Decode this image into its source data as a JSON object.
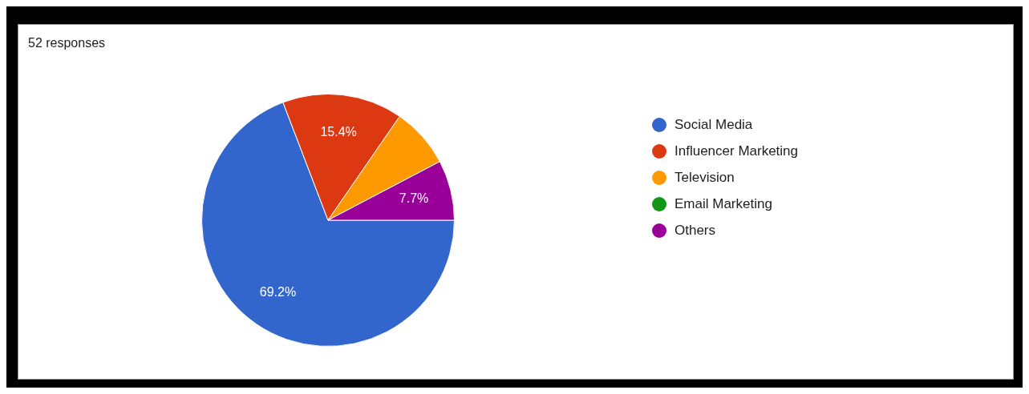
{
  "chart_data": {
    "type": "pie",
    "title": "52 responses",
    "categories": [
      "Social Media",
      "Influencer Marketing",
      "Television",
      "Email Marketing",
      "Others"
    ],
    "values": [
      69.2,
      15.4,
      7.7,
      0,
      7.7
    ],
    "colors": [
      "#3366cc",
      "#dc3912",
      "#ff9900",
      "#109618",
      "#990099"
    ],
    "value_labels": [
      "69.2%",
      "15.4%",
      null,
      null,
      "7.7%"
    ],
    "legend": "right"
  }
}
